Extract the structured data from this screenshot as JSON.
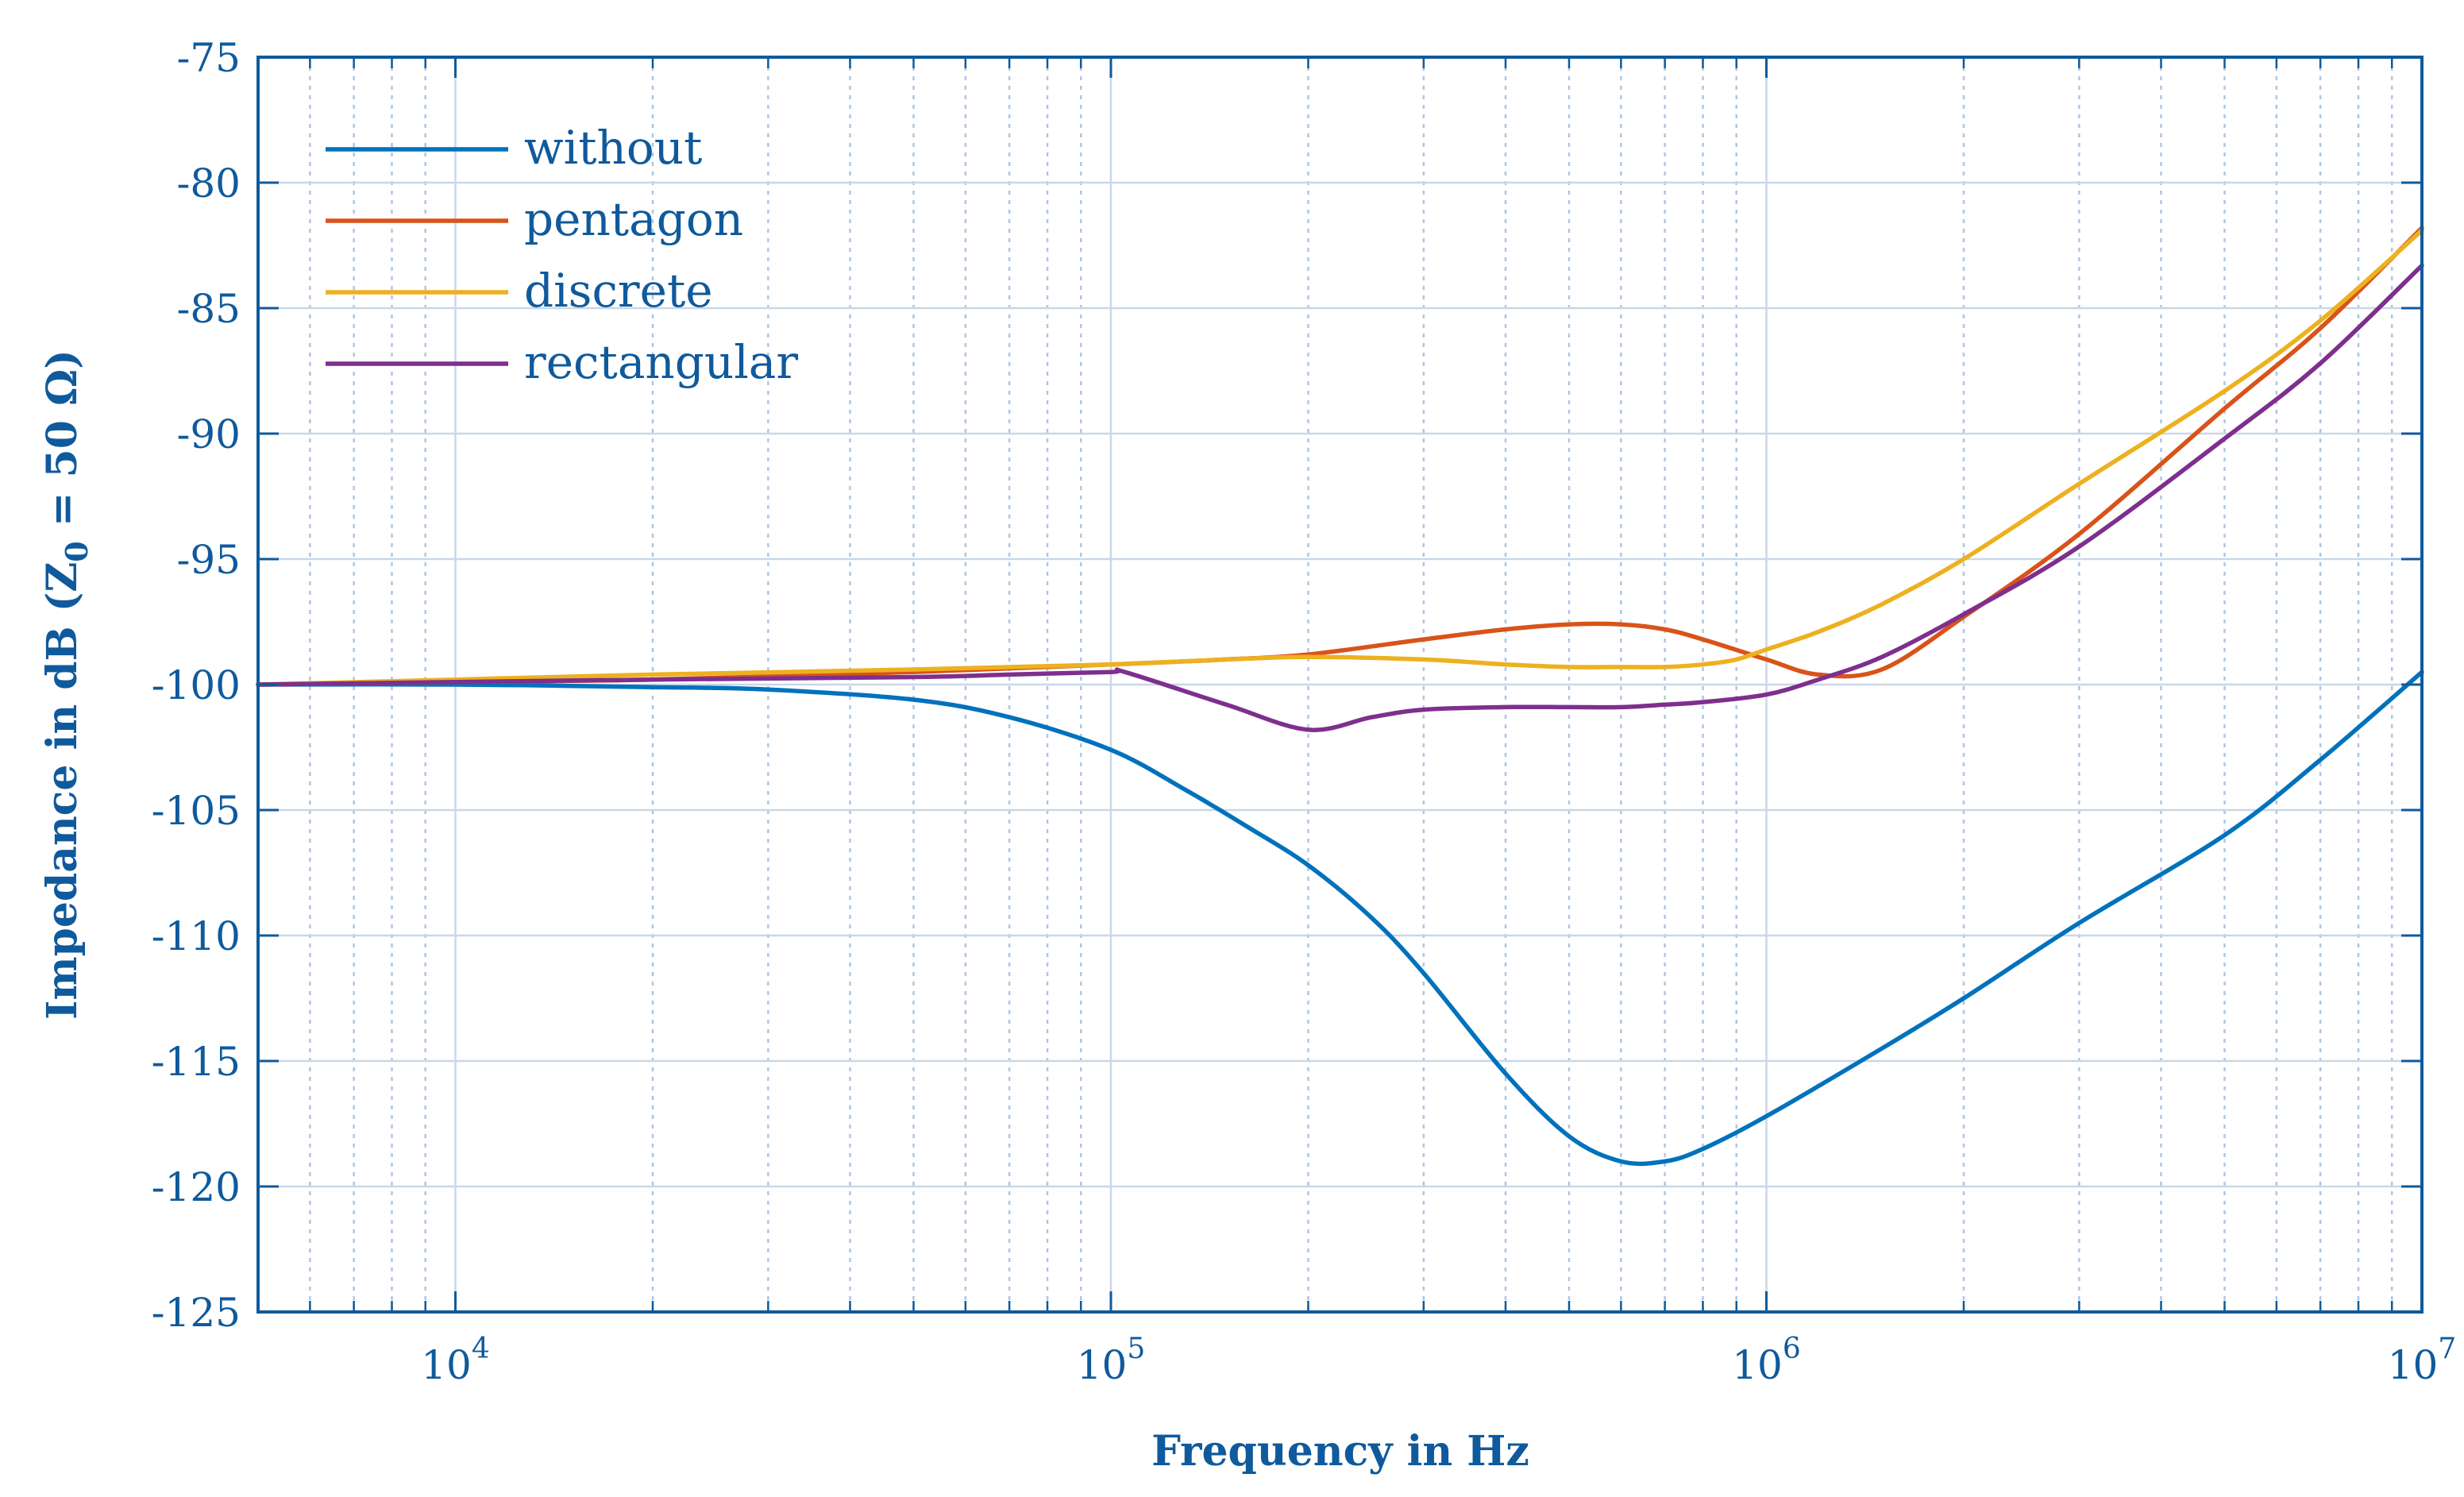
{
  "chart_data": {
    "type": "line",
    "title": "",
    "xlabel": "Frequency in Hz",
    "ylabel": "Impedance in dB",
    "ylabel_subscript_parts": {
      "open": " (Z",
      "sub": "0",
      "close": " = 50 Ω)"
    },
    "xscale": "log",
    "xlim": [
      5000,
      10000000
    ],
    "ylim": [
      -125,
      -75
    ],
    "grid": true,
    "legend_position": "top-left",
    "x_ticks": [
      {
        "value": 10000,
        "base": "10",
        "exp": "4"
      },
      {
        "value": 100000,
        "base": "10",
        "exp": "5"
      },
      {
        "value": 1000000,
        "base": "10",
        "exp": "6"
      },
      {
        "value": 10000000,
        "base": "10",
        "exp": "7"
      }
    ],
    "y_ticks": [
      -75,
      -80,
      -85,
      -90,
      -95,
      -100,
      -105,
      -110,
      -115,
      -120,
      -125
    ],
    "y_tick_labels": [
      "-75",
      "-80",
      "-85",
      "-90",
      "-95",
      "-100",
      "-105",
      "-110",
      "-115",
      "-120",
      "-125"
    ],
    "series": [
      {
        "name": "without",
        "color": "#0072bd",
        "x": [
          5000,
          10000,
          20000,
          30000,
          50000,
          70000,
          100000,
          130000,
          160000,
          200000,
          250000,
          300000,
          400000,
          500000,
          600000,
          700000,
          800000,
          1000000,
          1500000,
          2000000,
          3000000,
          5000000,
          7000000,
          10000000
        ],
        "y": [
          -100,
          -100,
          -100.1,
          -100.2,
          -100.6,
          -101.3,
          -102.6,
          -104.2,
          -105.6,
          -107.2,
          -109.3,
          -111.5,
          -115.5,
          -118.0,
          -119.0,
          -119.0,
          -118.5,
          -117.2,
          -114.5,
          -112.5,
          -109.5,
          -106.0,
          -103.0,
          -99.5
        ]
      },
      {
        "name": "pentagon",
        "color": "#d95319",
        "x": [
          5000,
          10000,
          20000,
          50000,
          100000,
          150000,
          200000,
          300000,
          400000,
          500000,
          600000,
          700000,
          800000,
          1000000,
          1200000,
          1500000,
          2000000,
          3000000,
          5000000,
          7000000,
          10000000
        ],
        "y": [
          -100,
          -99.9,
          -99.8,
          -99.5,
          -99.2,
          -99.0,
          -98.8,
          -98.2,
          -97.8,
          -97.6,
          -97.6,
          -97.8,
          -98.2,
          -99.0,
          -99.6,
          -99.4,
          -97.3,
          -94.0,
          -89.0,
          -85.8,
          -81.8
        ]
      },
      {
        "name": "discrete",
        "color": "#edb120",
        "x": [
          5000,
          10000,
          20000,
          50000,
          100000,
          150000,
          200000,
          300000,
          400000,
          500000,
          600000,
          700000,
          800000,
          900000,
          1000000,
          1200000,
          1500000,
          2000000,
          3000000,
          5000000,
          7000000,
          10000000
        ],
        "y": [
          -100,
          -99.8,
          -99.6,
          -99.4,
          -99.2,
          -99.0,
          -98.9,
          -99.0,
          -99.2,
          -99.3,
          -99.3,
          -99.3,
          -99.2,
          -99.0,
          -98.6,
          -97.9,
          -96.8,
          -95.0,
          -92.0,
          -88.3,
          -85.5,
          -81.9
        ]
      },
      {
        "name": "rectangular",
        "color": "#7e2f8e",
        "x": [
          5000,
          10000,
          20000,
          50000,
          70000,
          100000,
          105000,
          150000,
          200000,
          250000,
          300000,
          400000,
          500000,
          600000,
          700000,
          800000,
          1000000,
          1200000,
          1500000,
          2000000,
          3000000,
          5000000,
          7000000,
          10000000
        ],
        "y": [
          -100,
          -99.9,
          -99.8,
          -99.7,
          -99.6,
          -99.5,
          -99.5,
          -100.8,
          -101.8,
          -101.3,
          -101.0,
          -100.9,
          -100.9,
          -100.9,
          -100.8,
          -100.7,
          -100.4,
          -99.8,
          -98.9,
          -97.2,
          -94.5,
          -90.2,
          -87.2,
          -83.3
        ]
      }
    ]
  }
}
